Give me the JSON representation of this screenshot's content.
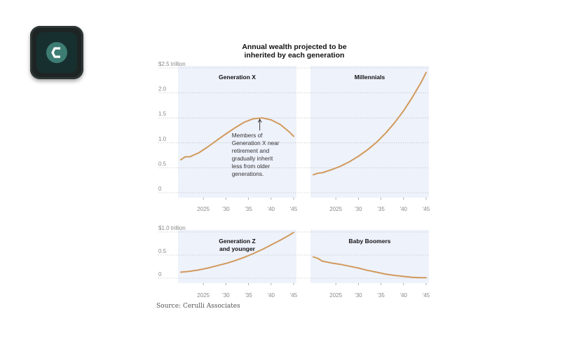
{
  "app_icon": {
    "name": "app-logo-icon",
    "letter": "C",
    "color": "#3d7c73"
  },
  "figure_title": "Annual wealth projected to be inherited by each generation",
  "source": "Source: Cerulli Associates",
  "colors": {
    "line": "#d19a5c",
    "panel_bg": "#eef2fb",
    "grid": "#bbbbbb",
    "text": "#111111",
    "tick": "#888888"
  },
  "chart_data": [
    {
      "type": "line",
      "row": "top",
      "ylim": [
        0,
        2.5
      ],
      "yticks": [
        0,
        0.5,
        1.0,
        1.5,
        2.0,
        2.5
      ],
      "ytick_labels": [
        "0",
        "0.5",
        "1.0",
        "1.5",
        "2.0",
        "$2.5 trillion"
      ],
      "xlim": [
        2020,
        2045
      ],
      "xticks": [
        2025,
        2030,
        2035,
        2040,
        2045
      ],
      "xtick_labels": [
        "2025",
        "'30",
        "'35",
        "'40",
        "'45"
      ],
      "series": [
        {
          "name": "Generation X",
          "x": [
            2020,
            2021,
            2022,
            2024,
            2026,
            2028,
            2030,
            2032,
            2034,
            2036,
            2038,
            2040,
            2042,
            2044,
            2045
          ],
          "y": [
            0.66,
            0.72,
            0.72,
            0.8,
            0.92,
            1.05,
            1.18,
            1.3,
            1.41,
            1.48,
            1.5,
            1.46,
            1.37,
            1.22,
            1.13
          ]
        },
        {
          "name": "Millennials",
          "x": [
            2020,
            2021,
            2022,
            2024,
            2026,
            2028,
            2030,
            2032,
            2034,
            2036,
            2038,
            2040,
            2042,
            2044,
            2045
          ],
          "y": [
            0.36,
            0.39,
            0.4,
            0.46,
            0.53,
            0.62,
            0.73,
            0.86,
            1.01,
            1.19,
            1.4,
            1.64,
            1.92,
            2.23,
            2.41
          ]
        }
      ],
      "annotation": {
        "series": "Generation X",
        "x": 2037.5,
        "y": 1.5,
        "lines": [
          "Members of",
          "Generation X near",
          "retirement and",
          "gradually inherit",
          "less from older",
          "generations."
        ]
      }
    },
    {
      "type": "line",
      "row": "bottom",
      "ylim": [
        0,
        1.0
      ],
      "yticks": [
        0,
        0.5,
        1.0
      ],
      "ytick_labels": [
        "0",
        "0.5",
        "$1.0 trillion"
      ],
      "xlim": [
        2020,
        2045
      ],
      "xticks": [
        2025,
        2030,
        2035,
        2040,
        2045
      ],
      "xtick_labels": [
        "2025",
        "'30",
        "'35",
        "'40",
        "'45"
      ],
      "series": [
        {
          "name": "Generation Z and younger",
          "title_lines": [
            "Generation Z",
            "and younger"
          ],
          "x": [
            2020,
            2022,
            2024,
            2026,
            2028,
            2030,
            2032,
            2034,
            2036,
            2038,
            2040,
            2042,
            2044,
            2045
          ],
          "y": [
            0.13,
            0.15,
            0.18,
            0.22,
            0.27,
            0.32,
            0.38,
            0.45,
            0.53,
            0.62,
            0.72,
            0.82,
            0.93,
            0.99
          ]
        },
        {
          "name": "Baby Boomers",
          "x": [
            2020,
            2021,
            2022,
            2024,
            2026,
            2028,
            2030,
            2032,
            2034,
            2036,
            2038,
            2040,
            2042,
            2044,
            2045
          ],
          "y": [
            0.46,
            0.43,
            0.37,
            0.33,
            0.3,
            0.26,
            0.22,
            0.17,
            0.13,
            0.09,
            0.06,
            0.04,
            0.02,
            0.01,
            0.01
          ]
        }
      ]
    }
  ]
}
